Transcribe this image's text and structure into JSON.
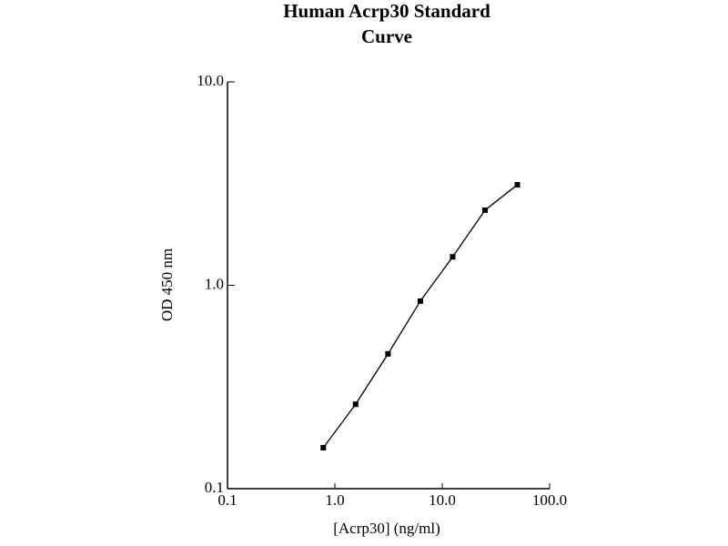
{
  "chart_data": {
    "type": "line",
    "title": [
      "Human Acrp30 Standard",
      "Curve"
    ],
    "x_label": "[Acrp30] (ng/ml)",
    "y_label": "OD 450 nm",
    "x": [
      0.78,
      1.56,
      3.125,
      6.25,
      12.5,
      25,
      50
    ],
    "series": [
      {
        "color": "#000000",
        "values": [
          0.159,
          0.26,
          0.46,
          0.836,
          1.38,
          2.34,
          3.12
        ]
      }
    ],
    "xscale": "log",
    "yscale": "log",
    "xlim": [
      0.1,
      100
    ],
    "ylim": [
      0.1,
      10
    ],
    "xticks": [
      {
        "value": 0.1,
        "label": "0.1"
      },
      {
        "value": 1,
        "label": "1.0"
      },
      {
        "value": 10,
        "label": "10.0"
      },
      {
        "value": 100,
        "label": "100.0"
      }
    ],
    "yticks": [
      {
        "value": 0.1,
        "label": "0.1"
      },
      {
        "value": 1,
        "label": "1.0"
      },
      {
        "value": 10,
        "label": "10.0"
      }
    ]
  }
}
